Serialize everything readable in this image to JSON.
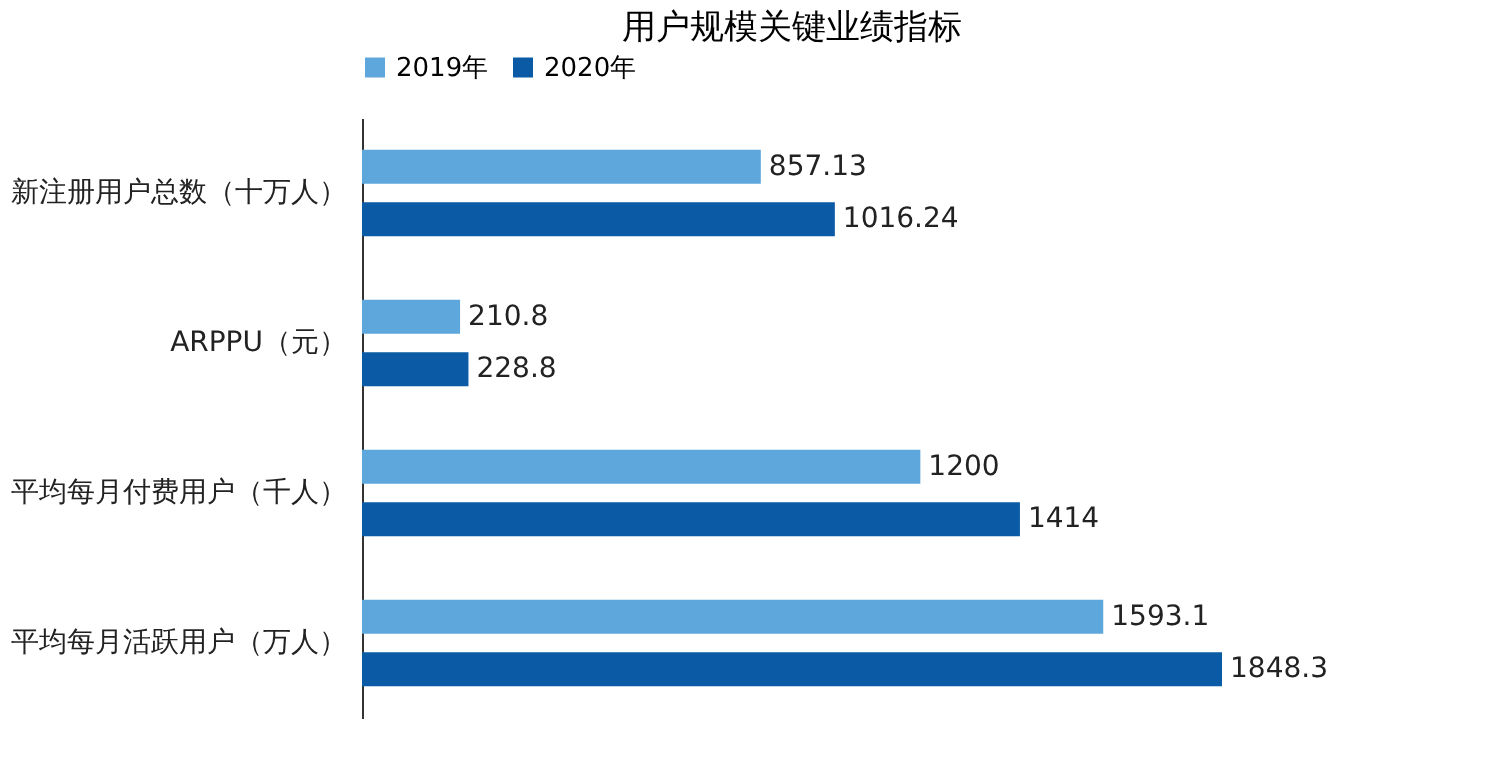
{
  "chart_data": {
    "type": "bar",
    "orientation": "horizontal",
    "title": "用户规模关键业绩指标",
    "categories": [
      "新注册用户总数（十万人）",
      "ARPPU（元）",
      "平均每月付费用户（千人）",
      "平均每月活跃用户（万人）"
    ],
    "series": [
      {
        "name": "2019年",
        "color": "#5ea7dd",
        "values": [
          857.13,
          210.8,
          1200,
          1593.1
        ]
      },
      {
        "name": "2020年",
        "color": "#0a5aa5",
        "values": [
          1016.24,
          228.8,
          1414,
          1848.3
        ]
      }
    ],
    "data_labels": true,
    "legend": "top",
    "grid": false
  }
}
